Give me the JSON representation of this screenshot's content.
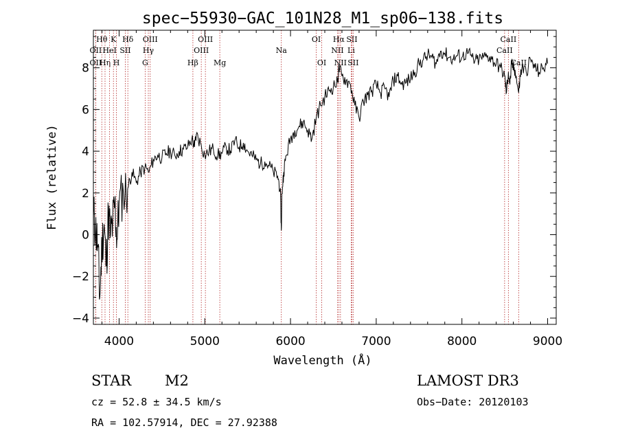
{
  "chart_data": {
    "type": "line",
    "title": "spec−55930−GAC_101N28_M1_sp06−138.fits",
    "xlabel": "Wavelength (Å)",
    "ylabel": "Flux (relative)",
    "xlim": [
      3700,
      9100
    ],
    "ylim": [
      -4.3,
      9.8
    ],
    "xticks": [
      4000,
      5000,
      6000,
      7000,
      8000,
      9000
    ],
    "xtick_labels": [
      "4000",
      "5000",
      "6000",
      "7000",
      "8000",
      "9000"
    ],
    "yticks": [
      -4,
      -2,
      0,
      2,
      4,
      6,
      8
    ],
    "ytick_labels": [
      "−4",
      "−2",
      "0",
      "2",
      "4",
      "6",
      "8"
    ],
    "grid": false,
    "series": [
      {
        "name": "flux",
        "color": "#000000",
        "x": [
          3700,
          3725,
          3750,
          3775,
          3800,
          3825,
          3850,
          3875,
          3900,
          3925,
          3950,
          3975,
          4000,
          4050,
          4100,
          4150,
          4200,
          4250,
          4300,
          4350,
          4400,
          4450,
          4500,
          4550,
          4600,
          4650,
          4700,
          4750,
          4800,
          4850,
          4880,
          4900,
          4950,
          5000,
          5050,
          5100,
          5150,
          5200,
          5250,
          5300,
          5350,
          5400,
          5450,
          5500,
          5550,
          5600,
          5650,
          5700,
          5750,
          5800,
          5850,
          5880,
          5893,
          5900,
          5920,
          5950,
          6000,
          6050,
          6100,
          6150,
          6200,
          6250,
          6300,
          6350,
          6400,
          6450,
          6500,
          6550,
          6563,
          6600,
          6650,
          6700,
          6750,
          6800,
          6850,
          6900,
          6950,
          7000,
          7050,
          7100,
          7150,
          7200,
          7250,
          7300,
          7350,
          7400,
          7450,
          7500,
          7550,
          7600,
          7650,
          7700,
          7750,
          7800,
          7850,
          7900,
          7950,
          8000,
          8050,
          8100,
          8150,
          8200,
          8250,
          8300,
          8350,
          8400,
          8450,
          8498,
          8520,
          8542,
          8560,
          8580,
          8600,
          8620,
          8662,
          8680,
          8700,
          8750,
          8800,
          8850,
          8900,
          8950,
          9000
        ],
        "y": [
          1.0,
          0.3,
          -0.5,
          -3.0,
          -0.5,
          0.5,
          -1.5,
          1.0,
          0.0,
          0.5,
          1.5,
          -0.2,
          1.5,
          2.0,
          2.2,
          3.0,
          2.5,
          3.0,
          3.2,
          3.0,
          3.6,
          3.8,
          3.7,
          3.9,
          4.0,
          3.8,
          4.0,
          4.1,
          4.2,
          4.6,
          4.2,
          4.8,
          4.4,
          3.8,
          4.0,
          4.1,
          3.8,
          3.9,
          4.2,
          4.0,
          4.5,
          4.2,
          4.4,
          4.0,
          3.8,
          3.6,
          3.4,
          3.5,
          3.3,
          3.0,
          2.8,
          2.2,
          0.2,
          2.0,
          3.0,
          3.8,
          4.6,
          5.0,
          5.2,
          5.4,
          5.0,
          4.6,
          5.6,
          6.2,
          6.6,
          6.9,
          7.1,
          7.3,
          8.0,
          7.6,
          7.4,
          7.2,
          6.2,
          5.6,
          6.4,
          6.7,
          6.9,
          7.2,
          6.8,
          7.0,
          6.6,
          7.4,
          7.6,
          7.2,
          7.3,
          7.5,
          7.8,
          8.2,
          8.4,
          8.6,
          8.5,
          8.2,
          8.8,
          8.7,
          8.5,
          8.4,
          8.6,
          8.5,
          8.7,
          8.6,
          8.3,
          8.4,
          8.5,
          8.6,
          8.4,
          8.2,
          8.0,
          7.6,
          6.8,
          7.8,
          7.2,
          8.2,
          8.0,
          7.9,
          6.8,
          7.6,
          8.0,
          7.8,
          8.4,
          8.0,
          7.8,
          8.0,
          8.2
        ]
      }
    ],
    "line_markers": [
      {
        "name": "Hθ",
        "wavelength": 3798,
        "label_row": 0
      },
      {
        "name": "OII",
        "wavelength": 3727,
        "label_row": 1
      },
      {
        "name": "OII",
        "wavelength": 3727,
        "label_row": 2
      },
      {
        "name": "Hη",
        "wavelength": 3836,
        "label_row": 2
      },
      {
        "name": "HeI",
        "wavelength": 3889,
        "label_row": 1
      },
      {
        "name": "K",
        "wavelength": 3934,
        "label_row": 0
      },
      {
        "name": "H",
        "wavelength": 3969,
        "label_row": 2
      },
      {
        "name": "SII",
        "wavelength": 4072,
        "label_row": 1
      },
      {
        "name": "Hδ",
        "wavelength": 4102,
        "label_row": 0
      },
      {
        "name": "OIII",
        "wavelength": 4363,
        "label_row": 0
      },
      {
        "name": "Hγ",
        "wavelength": 4341,
        "label_row": 1
      },
      {
        "name": "G",
        "wavelength": 4304,
        "label_row": 2
      },
      {
        "name": "Hβ",
        "wavelength": 4861,
        "label_row": 2
      },
      {
        "name": "OIII",
        "wavelength": 4959,
        "label_row": 1
      },
      {
        "name": "OIII",
        "wavelength": 5007,
        "label_row": 0
      },
      {
        "name": "Mg",
        "wavelength": 5175,
        "label_row": 2
      },
      {
        "name": "Na",
        "wavelength": 5893,
        "label_row": 1
      },
      {
        "name": "OI",
        "wavelength": 6300,
        "label_row": 0
      },
      {
        "name": "OI",
        "wavelength": 6364,
        "label_row": 2
      },
      {
        "name": "NII",
        "wavelength": 6548,
        "label_row": 1
      },
      {
        "name": "Hα",
        "wavelength": 6563,
        "label_row": 0
      },
      {
        "name": "NII",
        "wavelength": 6583,
        "label_row": 2
      },
      {
        "name": "Li",
        "wavelength": 6708,
        "label_row": 1
      },
      {
        "name": "SII",
        "wavelength": 6716,
        "label_row": 0
      },
      {
        "name": "SII",
        "wavelength": 6731,
        "label_row": 2
      },
      {
        "name": "CaII",
        "wavelength": 8542,
        "label_row": 0
      },
      {
        "name": "CaII",
        "wavelength": 8498,
        "label_row": 1
      },
      {
        "name": "CaII",
        "wavelength": 8662,
        "label_row": 2
      }
    ],
    "marker_color": "#b22222"
  },
  "info": {
    "class_label": "STAR",
    "subclass_label": "M2",
    "survey_label": "LAMOST DR3",
    "cz_text": "cz = 52.8 ± 34.5 km/s",
    "obs_date_text": "Obs−Date: 20120103",
    "radec_text": "RA = 102.57914, DEC =  27.92388"
  }
}
